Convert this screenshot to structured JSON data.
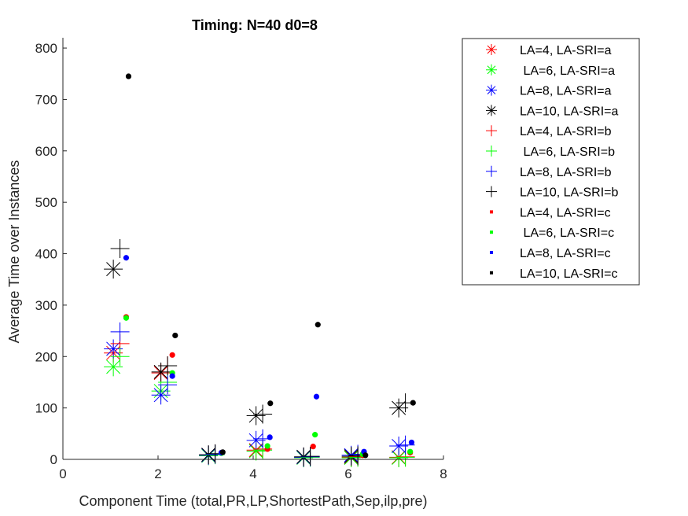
{
  "chart_data": {
    "type": "scatter",
    "title": "Timing:  N=40 d0=8",
    "xlabel": "Component Time (total,PR,LP,ShortestPath,Sep,ilp,pre)",
    "ylabel": "Average Time over Instances",
    "xlim": [
      0,
      8
    ],
    "ylim": [
      0,
      820
    ],
    "xticks": [
      0,
      2,
      4,
      6,
      8
    ],
    "yticks": [
      0,
      100,
      200,
      300,
      400,
      500,
      600,
      700,
      800
    ],
    "legend_position": "top-right",
    "series": [
      {
        "name": "LA=4, LA-SRI=a",
        "marker": "asterisk",
        "color": "#ff0000",
        "x": [
          1.06,
          2.06,
          3.06,
          4.06,
          5.06,
          6.06,
          7.06
        ],
        "y": [
          207,
          168,
          8,
          18,
          4,
          4,
          4
        ]
      },
      {
        "name": " LA=6, LA-SRI=a",
        "marker": "asterisk",
        "color": "#00ff00",
        "x": [
          1.06,
          2.06,
          3.06,
          4.06,
          5.06,
          6.06,
          7.06
        ],
        "y": [
          180,
          133,
          7,
          16,
          3,
          3,
          3
        ]
      },
      {
        "name": "LA=8, LA-SRI=a",
        "marker": "asterisk",
        "color": "#0000ff",
        "x": [
          1.06,
          2.06,
          3.06,
          4.06,
          5.06,
          6.06,
          7.06
        ],
        "y": [
          215,
          125,
          8,
          37,
          4,
          8,
          26
        ]
      },
      {
        "name": "LA=10, LA-SRI=a",
        "marker": "asterisk",
        "color": "#000000",
        "x": [
          1.06,
          2.06,
          3.06,
          4.06,
          5.06,
          6.06,
          7.06
        ],
        "y": [
          370,
          170,
          9,
          85,
          5,
          6,
          100
        ]
      },
      {
        "name": "LA=4, LA-SRI=b",
        "marker": "plus",
        "color": "#ff0000",
        "x": [
          1.2,
          2.2,
          3.2,
          4.2,
          5.2,
          6.2,
          7.2
        ],
        "y": [
          225,
          182,
          10,
          20,
          5,
          5,
          5
        ]
      },
      {
        "name": " LA=6, LA-SRI=b",
        "marker": "plus",
        "color": "#00ff00",
        "x": [
          1.2,
          2.2,
          3.2,
          4.2,
          5.2,
          6.2,
          7.2
        ],
        "y": [
          200,
          150,
          9,
          18,
          4,
          4,
          4
        ]
      },
      {
        "name": "LA=8, LA-SRI=b",
        "marker": "plus",
        "color": "#0000ff",
        "x": [
          1.2,
          2.2,
          3.2,
          4.2,
          5.2,
          6.2,
          7.2
        ],
        "y": [
          248,
          145,
          10,
          40,
          5,
          10,
          28
        ]
      },
      {
        "name": "LA=10, LA-SRI=b",
        "marker": "plus",
        "color": "#000000",
        "x": [
          1.2,
          2.2,
          3.2,
          4.2,
          5.2,
          6.2,
          7.2
        ],
        "y": [
          410,
          182,
          11,
          88,
          6,
          7,
          110
        ]
      },
      {
        "name": "LA=4, LA-SRI=c",
        "marker": "dot",
        "color": "#ff0000",
        "x": [
          1.33,
          2.3,
          3.33,
          4.3,
          5.26,
          6.3,
          7.3
        ],
        "y": [
          277,
          203,
          13,
          20,
          25,
          8,
          13
        ]
      },
      {
        "name": " LA=6, LA-SRI=c",
        "marker": "dot",
        "color": "#00ff00",
        "x": [
          1.33,
          2.3,
          3.33,
          4.3,
          5.3,
          6.3,
          7.3
        ],
        "y": [
          275,
          168,
          12,
          26,
          48,
          10,
          15
        ]
      },
      {
        "name": "LA=8, LA-SRI=c",
        "marker": "dot",
        "color": "#0000ff",
        "x": [
          1.33,
          2.3,
          3.33,
          4.35,
          5.33,
          6.33,
          7.33
        ],
        "y": [
          392,
          162,
          13,
          43,
          122,
          15,
          33
        ]
      },
      {
        "name": "LA=10, LA-SRI=c",
        "marker": "dot",
        "color": "#000000",
        "x": [
          1.38,
          2.36,
          3.36,
          4.36,
          5.36,
          6.36,
          7.36
        ],
        "y": [
          745,
          241,
          14,
          109,
          262,
          8,
          110
        ]
      }
    ]
  }
}
